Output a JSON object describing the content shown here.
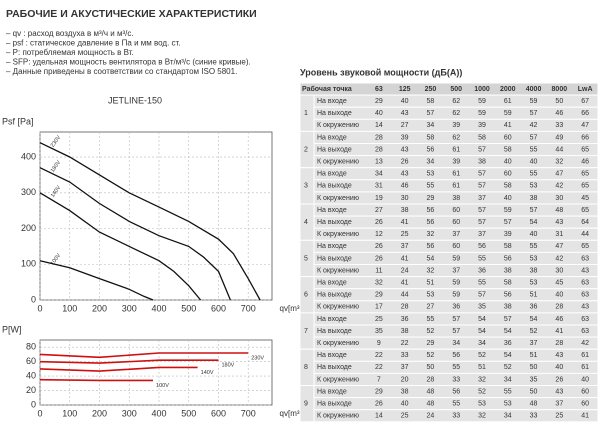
{
  "header": {
    "title": "РАБОЧИЕ И АКУСТИЧЕСКИЕ ХАРАКТЕРИСТИКИ",
    "notes": [
      "– qv : расход воздуха в м³/ч и м³/с.",
      "– psf : статическое давление в Па и мм вод. ст.",
      "– P: потребляемая мощность в Вт.",
      "– SFP: удельная мощность вентилятора в Вт/м³/с (синие кривые).",
      "– Данные приведены в соответствии со стандартом ISO 5801."
    ]
  },
  "chart_data": [
    {
      "type": "line",
      "title": "JETLINE-150",
      "ylabel": "Psf [Pa]",
      "xlabel": "qv[m³/h]",
      "xlim": [
        0,
        780
      ],
      "ylim": [
        0,
        470
      ],
      "xticks": [
        0,
        100,
        200,
        300,
        400,
        500,
        600,
        700
      ],
      "yticks": [
        0,
        100,
        200,
        300,
        400
      ],
      "grid": true,
      "series": [
        {
          "name": "230V",
          "color": "#111111",
          "x": [
            0,
            100,
            200,
            300,
            400,
            500,
            600,
            650,
            700,
            740
          ],
          "values": [
            440,
            400,
            350,
            300,
            260,
            220,
            170,
            130,
            60,
            0
          ]
        },
        {
          "name": "180V",
          "color": "#111111",
          "x": [
            0,
            100,
            200,
            300,
            400,
            500,
            550,
            600,
            640
          ],
          "values": [
            370,
            330,
            270,
            220,
            180,
            150,
            120,
            80,
            0
          ]
        },
        {
          "name": "140V",
          "color": "#111111",
          "x": [
            0,
            100,
            200,
            300,
            400,
            450,
            500,
            540
          ],
          "values": [
            300,
            250,
            190,
            150,
            110,
            80,
            40,
            0
          ]
        },
        {
          "name": "100V",
          "color": "#111111",
          "x": [
            0,
            100,
            200,
            300,
            350,
            380
          ],
          "values": [
            110,
            90,
            60,
            30,
            10,
            0
          ]
        }
      ]
    },
    {
      "type": "line",
      "ylabel": "P[W]",
      "xlabel": "qv[m³/h]",
      "label_color": "#d01010",
      "xlim": [
        0,
        780
      ],
      "ylim": [
        0,
        90
      ],
      "xticks": [
        0,
        100,
        200,
        300,
        400,
        500,
        600,
        700
      ],
      "yticks": [
        0,
        20,
        40,
        60,
        80
      ],
      "grid": true,
      "series": [
        {
          "name": "230V",
          "color": "#d01010",
          "x": [
            0,
            200,
            400,
            700
          ],
          "values": [
            70,
            66,
            72,
            72
          ]
        },
        {
          "name": "180V",
          "color": "#d01010",
          "x": [
            0,
            200,
            400,
            600
          ],
          "values": [
            60,
            58,
            62,
            62
          ]
        },
        {
          "name": "140V",
          "color": "#d01010",
          "x": [
            0,
            200,
            400,
            530
          ],
          "values": [
            50,
            47,
            52,
            52
          ]
        },
        {
          "name": "100V",
          "color": "#d01010",
          "x": [
            0,
            200,
            380
          ],
          "values": [
            35,
            34,
            34
          ]
        }
      ]
    }
  ],
  "table": {
    "title": "Уровень звуковой мощности (дБ(А))",
    "columns": [
      "Рабочая точка",
      "63",
      "125",
      "250",
      "500",
      "1000",
      "2000",
      "4000",
      "8000",
      "LwA"
    ],
    "groups": [
      {
        "point": "1",
        "rows": [
          [
            "На входе",
            29,
            40,
            58,
            62,
            59,
            61,
            59,
            50,
            67
          ],
          [
            "На выходе",
            40,
            43,
            57,
            62,
            59,
            59,
            57,
            46,
            66
          ],
          [
            "К окружению",
            14,
            27,
            34,
            39,
            39,
            41,
            42,
            33,
            47
          ]
        ]
      },
      {
        "point": "2",
        "rows": [
          [
            "На входе",
            28,
            39,
            58,
            62,
            58,
            60,
            57,
            49,
            66
          ],
          [
            "На выходе",
            28,
            43,
            56,
            61,
            57,
            58,
            55,
            44,
            65
          ],
          [
            "К окружению",
            13,
            26,
            34,
            39,
            38,
            40,
            40,
            32,
            46
          ]
        ]
      },
      {
        "point": "3",
        "rows": [
          [
            "На входе",
            34,
            43,
            53,
            61,
            57,
            60,
            55,
            47,
            65
          ],
          [
            "На выходе",
            31,
            46,
            55,
            61,
            57,
            58,
            53,
            42,
            65
          ],
          [
            "К окружению",
            19,
            30,
            29,
            38,
            37,
            40,
            38,
            30,
            45
          ]
        ]
      },
      {
        "point": "4",
        "rows": [
          [
            "На входе",
            27,
            38,
            56,
            60,
            57,
            59,
            57,
            48,
            65
          ],
          [
            "На выходе",
            26,
            41,
            56,
            60,
            57,
            57,
            54,
            43,
            64
          ],
          [
            "К окружению",
            12,
            25,
            32,
            37,
            37,
            39,
            40,
            31,
            44
          ]
        ]
      },
      {
        "point": "5",
        "rows": [
          [
            "На входе",
            26,
            37,
            56,
            60,
            56,
            58,
            55,
            47,
            65
          ],
          [
            "На выходе",
            26,
            41,
            54,
            59,
            55,
            56,
            53,
            42,
            63
          ],
          [
            "К окружению",
            11,
            24,
            32,
            37,
            36,
            38,
            38,
            30,
            43
          ]
        ]
      },
      {
        "point": "6",
        "rows": [
          [
            "На входе",
            32,
            41,
            51,
            59,
            55,
            58,
            53,
            45,
            63
          ],
          [
            "На выходе",
            29,
            44,
            53,
            59,
            57,
            56,
            51,
            40,
            63
          ],
          [
            "К окружению",
            17,
            28,
            27,
            36,
            35,
            38,
            36,
            28,
            43
          ]
        ]
      },
      {
        "point": "7",
        "rows": [
          [
            "На входе",
            25,
            36,
            55,
            57,
            54,
            57,
            54,
            46,
            63
          ],
          [
            "На выходе",
            35,
            38,
            52,
            57,
            54,
            54,
            52,
            41,
            63
          ],
          [
            "К окружению",
            9,
            22,
            29,
            34,
            34,
            36,
            37,
            28,
            42
          ]
        ]
      },
      {
        "point": "8",
        "rows": [
          [
            "На входе",
            22,
            33,
            52,
            56,
            52,
            54,
            51,
            43,
            61
          ],
          [
            "На выходе",
            22,
            37,
            50,
            55,
            51,
            52,
            50,
            40,
            61
          ],
          [
            "К окружению",
            7,
            20,
            28,
            33,
            32,
            34,
            35,
            26,
            40
          ]
        ]
      },
      {
        "point": "9",
        "rows": [
          [
            "На входе",
            29,
            38,
            48,
            56,
            52,
            55,
            50,
            43,
            60
          ],
          [
            "На выходе",
            26,
            40,
            48,
            55,
            53,
            53,
            48,
            37,
            60
          ],
          [
            "К окружению",
            14,
            25,
            24,
            33,
            32,
            34,
            33,
            25,
            41
          ]
        ]
      }
    ]
  }
}
